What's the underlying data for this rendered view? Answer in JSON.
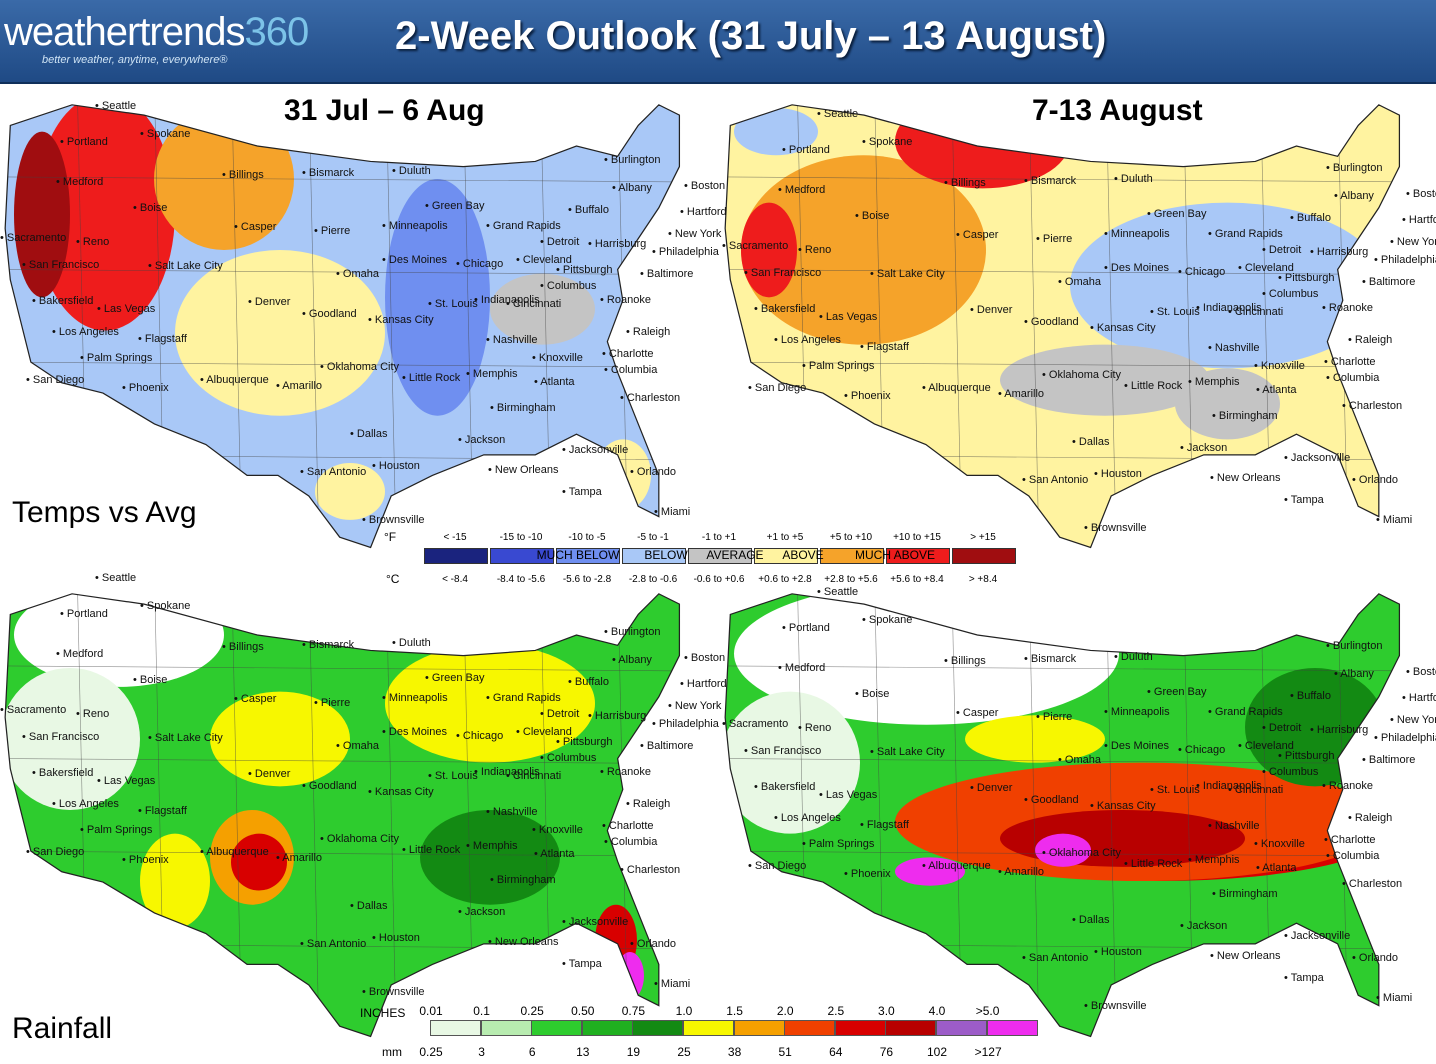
{
  "header": {
    "logo_text_light": "weathertrends",
    "logo_text_number": "360",
    "logo_tagline": "better weather, anytime, everywhere®",
    "title": "2-Week Outlook (31 July – 13 August)"
  },
  "panels": {
    "week1_title": "31 Jul – 6 Aug",
    "week2_title": "7-13 August",
    "temps_label": "Temps vs Avg",
    "rain_label": "Rainfall"
  },
  "cities": {
    "seattle": "Seattle",
    "spokane": "Spokane",
    "portland": "Portland",
    "medford": "Medford",
    "boise": "Boise",
    "sacramento": "Sacramento",
    "reno": "Reno",
    "san_francisco": "San Francisco",
    "salt_lake": "Salt Lake City",
    "bakersfield": "Bakersfield",
    "las_vegas": "Las Vegas",
    "los_angeles": "Los Angeles",
    "flagstaff": "Flagstaff",
    "palm_springs": "Palm Springs",
    "san_diego": "San Diego",
    "phoenix": "Phoenix",
    "albuquerque": "Albuquerque",
    "billings": "Billings",
    "bismarck": "Bismarck",
    "casper": "Casper",
    "pierre": "Pierre",
    "denver": "Denver",
    "goodland": "Goodland",
    "amarillo": "Amarillo",
    "duluth": "Duluth",
    "minneapolis": "Minneapolis",
    "green_bay": "Green Bay",
    "grand_rapids": "Grand Rapids",
    "des_moines": "Des Moines",
    "chicago": "Chicago",
    "omaha": "Omaha",
    "kansas_city": "Kansas City",
    "st_louis": "St. Louis",
    "indianapolis": "Indianapolis",
    "detroit": "Detroit",
    "cleveland": "Cleveland",
    "columbus": "Columbus",
    "cincinnati": "Cincinnati",
    "pittsburgh": "Pittsburgh",
    "buffalo": "Buffalo",
    "harrisburg": "Harrisburg",
    "burlington": "Burlington",
    "albany": "Albany",
    "boston": "Boston",
    "hartford": "Hartford",
    "new_york": "New York",
    "philadelphia": "Philadelphia",
    "baltimore": "Baltimore",
    "roanoke": "Roanoke",
    "raleigh": "Raleigh",
    "charlotte": "Charlotte",
    "columbia": "Columbia",
    "charleston": "Charleston",
    "nashville": "Nashville",
    "knoxville": "Knoxville",
    "atlanta": "Atlanta",
    "birmingham": "Birmingham",
    "memphis": "Memphis",
    "little_rock": "Little Rock",
    "oklahoma_city": "Oklahoma City",
    "dallas": "Dallas",
    "jackson": "Jackson",
    "new_orleans": "New Orleans",
    "houston": "Houston",
    "san_antonio": "San Antonio",
    "jacksonville": "Jacksonville",
    "orlando": "Orlando",
    "tampa": "Tampa",
    "miami": "Miami",
    "brownsville": "Brownsville"
  },
  "temp_legend": {
    "unit_f": "°F",
    "unit_c": "°C",
    "f_ranges": [
      "< -15",
      "-15 to -10",
      "-10 to -5",
      "-5 to -1",
      "-1 to +1",
      "+1 to +5",
      "+5 to +10",
      "+10 to +15",
      "> +15"
    ],
    "c_ranges": [
      "< -8.4",
      "-8.4 to -5.6",
      "-5.6 to -2.8",
      "-2.8 to -0.6",
      "-0.6 to +0.6",
      "+0.6 to +2.8",
      "+2.8 to +5.6",
      "+5.6 to +8.4",
      "> +8.4"
    ],
    "categories": [
      "MUCH BELOW",
      "BELOW",
      "AVERAGE",
      "ABOVE",
      "MUCH ABOVE"
    ],
    "colors": [
      "#1a237e",
      "#3949d1",
      "#6f8ff0",
      "#a9c8f7",
      "#c4c4c4",
      "#fff3a0",
      "#f5a32a",
      "#ee1c1c",
      "#a00d10"
    ]
  },
  "rain_legend": {
    "unit_in": "INCHES",
    "unit_mm": "mm",
    "inches": [
      "0.01",
      "0.1",
      "0.25",
      "0.50",
      "0.75",
      "1.0",
      "1.5",
      "2.0",
      "2.5",
      "3.0",
      "4.0",
      ">5.0"
    ],
    "mm": [
      "0.25",
      "3",
      "6",
      "13",
      "19",
      "25",
      "38",
      "51",
      "64",
      "76",
      "102",
      ">127"
    ],
    "colors": [
      "#e8f8e4",
      "#b8ecb0",
      "#2ecc2e",
      "#20b020",
      "#138a13",
      "#f7f700",
      "#f5a000",
      "#f04000",
      "#d80000",
      "#b80000",
      "#9c5cc8",
      "#ee2cee"
    ]
  }
}
